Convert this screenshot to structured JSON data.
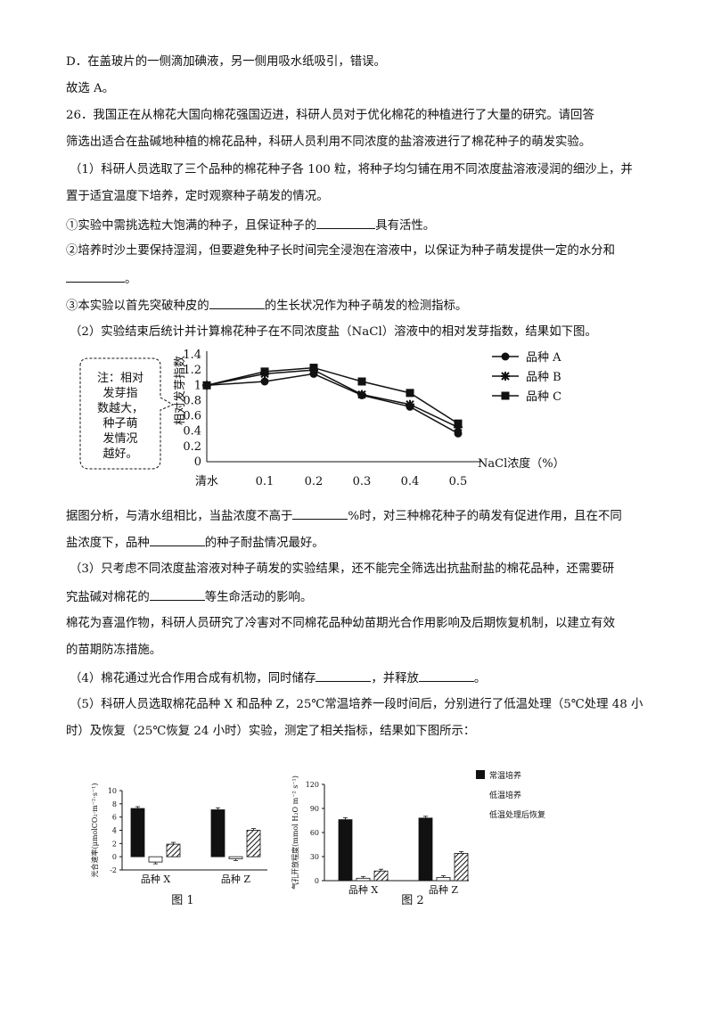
{
  "text": {
    "l1": "D．在盖玻片的一侧滴加碘液，另一侧用吸水纸吸引，错误。",
    "l2": "故选 A。",
    "l3": "26．我国正在从棉花大国向棉花强国迈进，科研人员对于优化棉花的种植进行了大量的研究。请回答",
    "l4": "筛选出适合在盐碱地种植的棉花品种，科研人员利用不同浓度的盐溶液进行了棉花种子的萌发实验。",
    "l5": "（1）科研人员选取了三个品种的棉花种子各 100 粒，将种子均匀铺在用不同浓度盐溶液浸润的细沙上，并",
    "l6": "置于适宜温度下培养，定时观察种子萌发的情况。",
    "l7a": "①实验中需挑选粒大饱满的种子，且保证种子的",
    "l7b": "具有活性。",
    "l8": "②培养时沙土要保持湿润，但要避免种子长时间完全浸泡在溶液中，以保证为种子萌发提供一定的水分和",
    "l9b": "。",
    "l10a": "③本实验以首先突破种皮的",
    "l10b": "的生长状况作为种子萌发的检测指标。",
    "l11": "（2）实验结束后统计并计算棉花种子在不同浓度盐（NaCl）溶液中的相对发芽指数，结果如下图。",
    "l12a": "据图分析，与清水组相比，当盐浓度不高于",
    "l12b": "%时，对三种棉花种子的萌发有促进作用，且在不同",
    "l13a": "盐浓度下，品种",
    "l13b": "的种子耐盐情况最好。",
    "l14": "（3）只考虑不同浓度盐溶液对种子萌发的实验结果，还不能完全筛选出抗盐耐盐的棉花品种，还需要研",
    "l15a": "究盐碱对棉花的",
    "l15b": "等生命活动的影响。",
    "l16": "棉花为喜温作物，科研人员研究了冷害对不同棉花品种幼苗期光合作用影响及后期恢复机制，以建立有效",
    "l17": "的苗期防冻措施。",
    "l18a": "（4）棉花通过光合作用合成有机物，同时储存",
    "l18b": "，并释放",
    "l18c": "。",
    "l19": "（5）科研人员选取棉花品种 X 和品种 Z，25℃常温培养一段时间后，分别进行了低温处理（5℃处理 48 小",
    "l20": "时）及恢复（25℃恢复 24 小时）实验，测定了相关指标，结果如下图所示："
  },
  "figure1": {
    "note": "注：相对发芽指数越大，种子萌发情况越好。",
    "chart_data": {
      "type": "line",
      "categories": [
        "清水",
        "0.1",
        "0.2",
        "0.3",
        "0.4",
        "0.5"
      ],
      "series": [
        {
          "name": "品种 A",
          "marker": "circle",
          "values": [
            1.0,
            1.05,
            1.15,
            0.87,
            0.72,
            0.37
          ]
        },
        {
          "name": "品种 B",
          "marker": "star",
          "values": [
            1.0,
            1.15,
            1.2,
            0.88,
            0.75,
            0.45
          ]
        },
        {
          "name": "品种 C",
          "marker": "square",
          "values": [
            1.0,
            1.18,
            1.23,
            1.05,
            0.9,
            0.5
          ]
        }
      ],
      "yticks": [
        "0",
        "0.2",
        "0.4",
        "0.6",
        "0.8",
        "1",
        "1.2",
        "1.4"
      ],
      "ylim": [
        0,
        1.4
      ],
      "ylabel": "相对发芽指数",
      "xlabel": "NaCl浓度（%）",
      "legend": "right"
    }
  },
  "figure2": {
    "caption": "图 1",
    "chart_data": {
      "type": "bar",
      "categories": [
        "品种 X",
        "品种 Z"
      ],
      "series": [
        {
          "name": "常温培养",
          "values": [
            7.3,
            7.1
          ],
          "errors": [
            0.15,
            0.3
          ],
          "fill": "#111111"
        },
        {
          "name": "低温培养",
          "values": [
            -0.8,
            -0.3
          ],
          "errors": [
            0.1,
            0.1
          ],
          "fill": "#ffffff"
        },
        {
          "name": "低温处理后恢复",
          "values": [
            1.9,
            4.0
          ],
          "errors": [
            0.1,
            0.1
          ],
          "fill": "hatch"
        }
      ],
      "yticks": [
        "-2",
        "0",
        "2",
        "4",
        "6",
        "8",
        "10"
      ],
      "ylim": [
        -2,
        10
      ],
      "ylabel": "光合速率(μmolCO₂·m⁻²·s⁻¹)"
    }
  },
  "figure3": {
    "caption": "图 2",
    "chart_data": {
      "type": "bar",
      "categories": [
        "品种 X",
        "品种 Z"
      ],
      "series": [
        {
          "name": "常温培养",
          "values": [
            76,
            78
          ],
          "errors": [
            2.5,
            1.5
          ],
          "fill": "#111111"
        },
        {
          "name": "低温培养",
          "values": [
            3,
            4
          ],
          "errors": [
            0.5,
            0.5
          ],
          "fill": "#ffffff"
        },
        {
          "name": "低温处理后恢复",
          "values": [
            12,
            34
          ],
          "errors": [
            0.8,
            0.8
          ],
          "fill": "hatch"
        }
      ],
      "yticks": [
        "0",
        "30",
        "60",
        "90",
        "120"
      ],
      "ylim": [
        0,
        120
      ],
      "ylabel": "气孔开放程度(mmol H₂O m⁻² s⁻¹)",
      "legend": [
        "常温培养",
        "低温培养",
        "低温处理后恢复"
      ]
    }
  }
}
